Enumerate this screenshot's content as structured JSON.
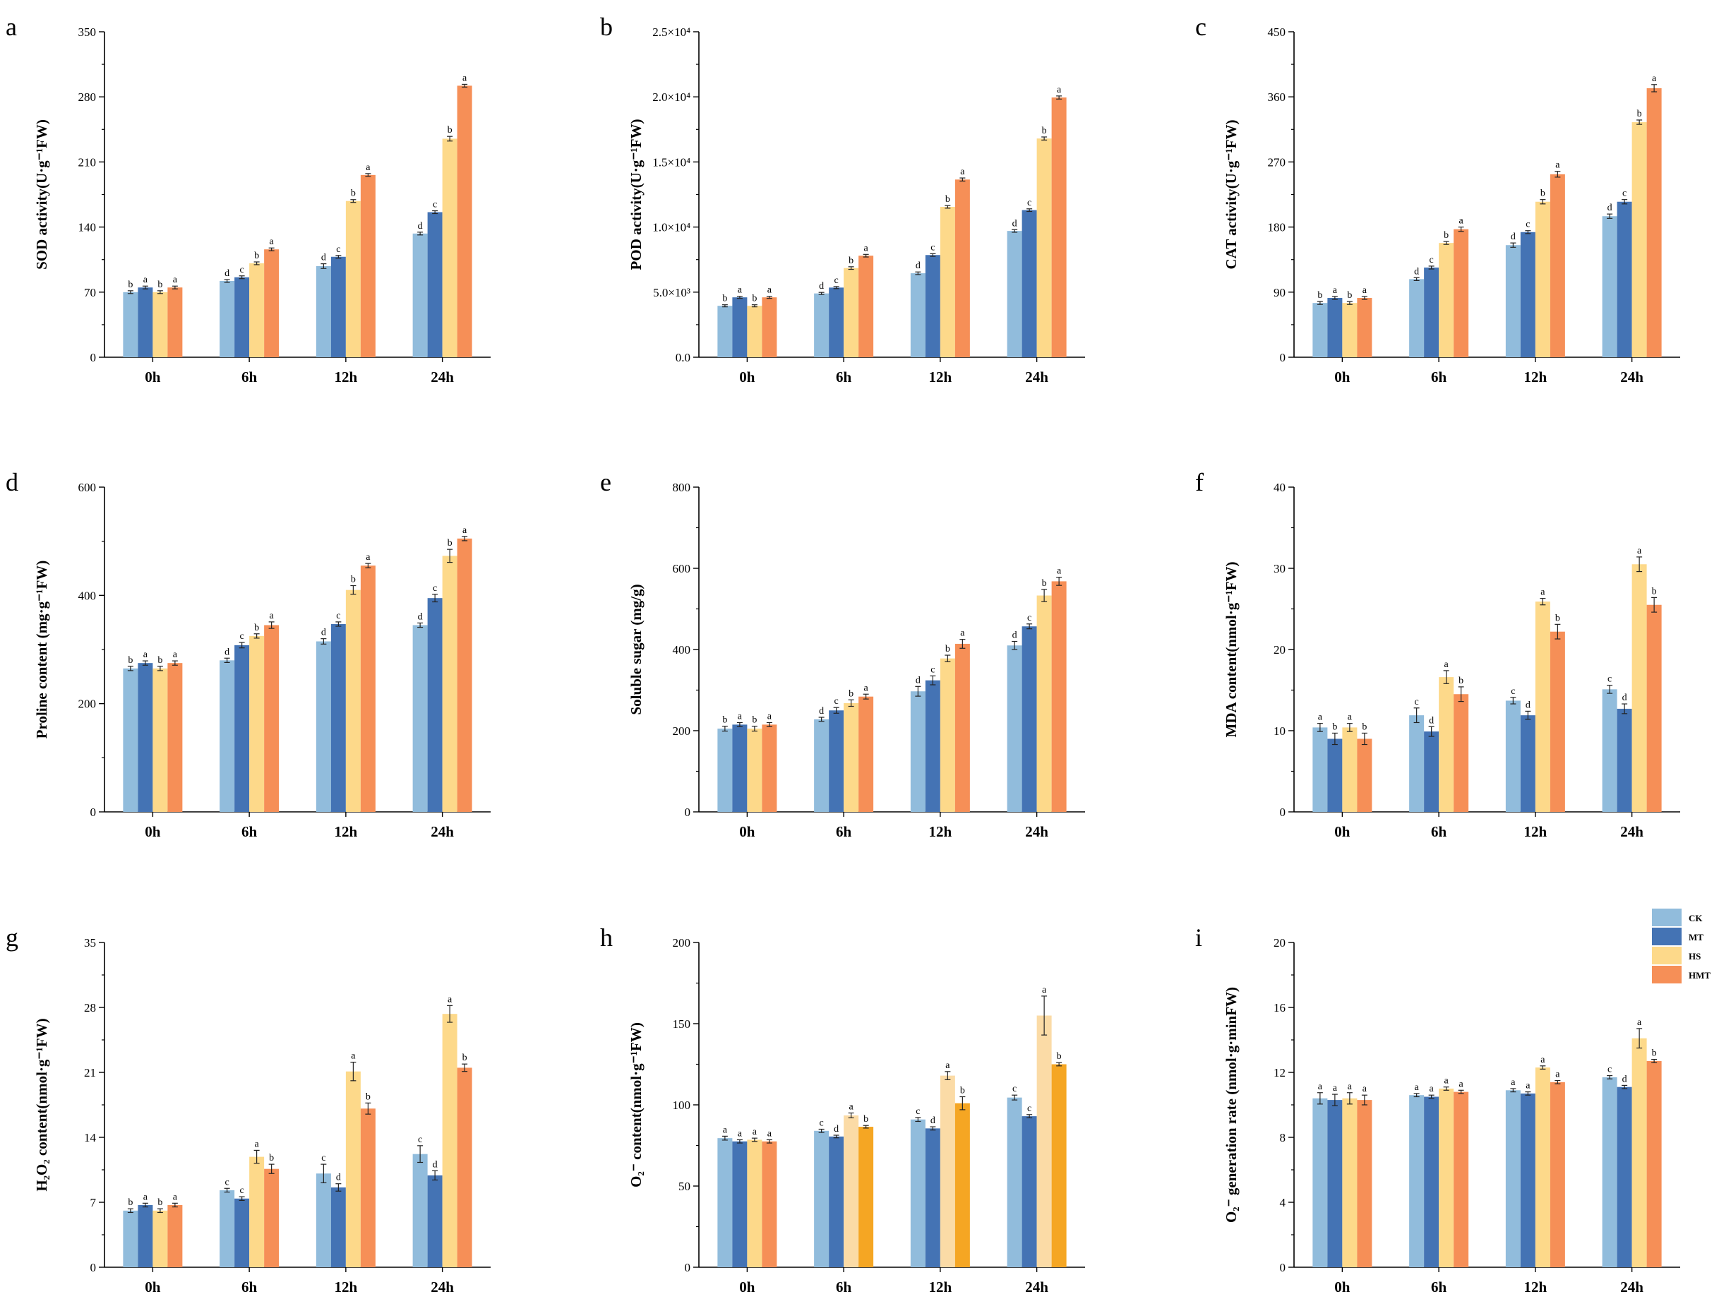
{
  "colors": {
    "CK": "#91bcdc",
    "MT": "#4473b4",
    "HS": "#fdd98a",
    "HMT": "#f68f57",
    "HS_h": "#fbdba6",
    "HMT_h": "#f5a623"
  },
  "legend": {
    "items": [
      "CK",
      "MT",
      "HS",
      "HMT"
    ]
  },
  "chart_data": [
    {
      "type": "bar",
      "panel": "a",
      "ylabel": "SOD activity(U·g⁻¹FW)",
      "ylim": [
        0,
        350
      ],
      "yticks": [
        "0",
        "70",
        "140",
        "210",
        "280",
        "350"
      ],
      "categories": [
        "0h",
        "6h",
        "12h",
        "24h"
      ],
      "series": [
        {
          "name": "CK",
          "values": [
            70,
            82,
            98,
            133
          ],
          "errors": [
            1.5,
            1.5,
            2.5,
            1.5
          ],
          "letters": [
            "b",
            "d",
            "d",
            "d"
          ]
        },
        {
          "name": "MT",
          "values": [
            75,
            86,
            108,
            156
          ],
          "errors": [
            1.5,
            1.5,
            1.5,
            1.5
          ],
          "letters": [
            "a",
            "c",
            "c",
            "c"
          ]
        },
        {
          "name": "HS",
          "values": [
            70,
            101,
            168,
            235
          ],
          "errors": [
            1.5,
            1.5,
            1.5,
            2.5
          ],
          "letters": [
            "b",
            "b",
            "b",
            "b"
          ]
        },
        {
          "name": "HMT",
          "values": [
            75,
            116,
            196,
            292
          ],
          "errors": [
            1.5,
            1.5,
            1.5,
            1.5
          ],
          "letters": [
            "a",
            "a",
            "a",
            "a"
          ]
        }
      ]
    },
    {
      "type": "bar",
      "panel": "b",
      "ylabel": "POD activity(U·g⁻¹FW)",
      "ylim": [
        0,
        25000
      ],
      "yticks": [
        "0.0",
        "5.0×10³",
        "1.0×10⁴",
        "1.5×10⁴",
        "2.0×10⁴",
        "2.5×10⁴"
      ],
      "categories": [
        "0h",
        "6h",
        "12h",
        "24h"
      ],
      "series": [
        {
          "name": "CK",
          "values": [
            3950,
            4900,
            6450,
            9700
          ],
          "errors": [
            80,
            80,
            100,
            100
          ],
          "letters": [
            "b",
            "d",
            "d",
            "d"
          ]
        },
        {
          "name": "MT",
          "values": [
            4600,
            5350,
            7850,
            11300
          ],
          "errors": [
            80,
            80,
            100,
            100
          ],
          "letters": [
            "a",
            "c",
            "c",
            "c"
          ]
        },
        {
          "name": "HS",
          "values": [
            3950,
            6850,
            11550,
            16800
          ],
          "errors": [
            80,
            100,
            100,
            120
          ],
          "letters": [
            "b",
            "b",
            "b",
            "b"
          ]
        },
        {
          "name": "HMT",
          "values": [
            4600,
            7800,
            13650,
            19950
          ],
          "errors": [
            80,
            100,
            120,
            120
          ],
          "letters": [
            "a",
            "a",
            "a",
            "a"
          ]
        }
      ]
    },
    {
      "type": "bar",
      "panel": "c",
      "ylabel": "CAT activity(U·g⁻¹FW)",
      "ylim": [
        0,
        450
      ],
      "yticks": [
        "0",
        "90",
        "180",
        "270",
        "360",
        "450"
      ],
      "categories": [
        "0h",
        "6h",
        "12h",
        "24h"
      ],
      "series": [
        {
          "name": "CK",
          "values": [
            75,
            108,
            155,
            195
          ],
          "errors": [
            2,
            2,
            3,
            3
          ],
          "letters": [
            "b",
            "d",
            "d",
            "d"
          ]
        },
        {
          "name": "MT",
          "values": [
            82,
            124,
            173,
            215
          ],
          "errors": [
            2,
            2,
            2,
            3
          ],
          "letters": [
            "a",
            "c",
            "c",
            "c"
          ]
        },
        {
          "name": "HS",
          "values": [
            75,
            158,
            215,
            325
          ],
          "errors": [
            2,
            2,
            3,
            3
          ],
          "letters": [
            "b",
            "b",
            "b",
            "b"
          ]
        },
        {
          "name": "HMT",
          "values": [
            82,
            177,
            253,
            372
          ],
          "errors": [
            2,
            3,
            4,
            5
          ],
          "letters": [
            "a",
            "a",
            "a",
            "a"
          ]
        }
      ]
    },
    {
      "type": "bar",
      "panel": "d",
      "ylabel": "Proline content (mg·g⁻¹FW)",
      "ylim": [
        0,
        600
      ],
      "yticks": [
        "0",
        "200",
        "400",
        "600"
      ],
      "categories": [
        "0h",
        "6h",
        "12h",
        "24h"
      ],
      "series": [
        {
          "name": "CK",
          "values": [
            265,
            280,
            315,
            345
          ],
          "errors": [
            4,
            4,
            5,
            4
          ],
          "letters": [
            "b",
            "d",
            "d",
            "d"
          ]
        },
        {
          "name": "MT",
          "values": [
            275,
            308,
            347,
            395
          ],
          "errors": [
            4,
            5,
            4,
            7
          ],
          "letters": [
            "a",
            "c",
            "c",
            "c"
          ]
        },
        {
          "name": "HS",
          "values": [
            265,
            325,
            410,
            473
          ],
          "errors": [
            4,
            4,
            8,
            12
          ],
          "letters": [
            "b",
            "b",
            "b",
            "b"
          ]
        },
        {
          "name": "HMT",
          "values": [
            275,
            345,
            455,
            505
          ],
          "errors": [
            4,
            6,
            4,
            4
          ],
          "letters": [
            "a",
            "a",
            "a",
            "a"
          ]
        }
      ]
    },
    {
      "type": "bar",
      "panel": "e",
      "ylabel": "Soluble sugar (mg/g)",
      "ylim": [
        0,
        800
      ],
      "yticks": [
        "0",
        "200",
        "400",
        "600",
        "800"
      ],
      "categories": [
        "0h",
        "6h",
        "12h",
        "24h"
      ],
      "series": [
        {
          "name": "CK",
          "values": [
            205,
            228,
            297,
            410
          ],
          "errors": [
            6,
            5,
            12,
            10
          ],
          "letters": [
            "b",
            "d",
            "d",
            "d"
          ]
        },
        {
          "name": "MT",
          "values": [
            215,
            250,
            324,
            457
          ],
          "errors": [
            5,
            7,
            11,
            6
          ],
          "letters": [
            "a",
            "c",
            "c",
            "c"
          ]
        },
        {
          "name": "HS",
          "values": [
            205,
            268,
            378,
            533
          ],
          "errors": [
            6,
            8,
            8,
            15
          ],
          "letters": [
            "b",
            "b",
            "b",
            "b"
          ]
        },
        {
          "name": "HMT",
          "values": [
            215,
            284,
            414,
            568
          ],
          "errors": [
            5,
            6,
            11,
            10
          ],
          "letters": [
            "a",
            "a",
            "a",
            "a"
          ]
        }
      ]
    },
    {
      "type": "bar",
      "panel": "f",
      "ylabel": "MDA content(nmol·g⁻¹FW)",
      "ylim": [
        0,
        40
      ],
      "yticks": [
        "0",
        "10",
        "20",
        "30",
        "40"
      ],
      "categories": [
        "0h",
        "6h",
        "12h",
        "24h"
      ],
      "series": [
        {
          "name": "CK",
          "values": [
            10.4,
            11.9,
            13.7,
            15.1
          ],
          "errors": [
            0.5,
            0.9,
            0.4,
            0.5
          ],
          "letters": [
            "a",
            "c",
            "c",
            "c"
          ]
        },
        {
          "name": "MT",
          "values": [
            9.0,
            9.9,
            11.9,
            12.7
          ],
          "errors": [
            0.7,
            0.6,
            0.5,
            0.6
          ],
          "letters": [
            "b",
            "d",
            "d",
            "d"
          ]
        },
        {
          "name": "HS",
          "values": [
            10.4,
            16.6,
            25.9,
            30.5
          ],
          "errors": [
            0.5,
            0.8,
            0.4,
            0.9
          ],
          "letters": [
            "a",
            "a",
            "a",
            "a"
          ]
        },
        {
          "name": "HMT",
          "values": [
            9.0,
            14.5,
            22.2,
            25.5
          ],
          "errors": [
            0.7,
            0.9,
            0.9,
            0.9
          ],
          "letters": [
            "b",
            "b",
            "b",
            "b"
          ]
        }
      ]
    },
    {
      "type": "bar",
      "panel": "g",
      "ylabel": "H₂O₂ content(nmol·g⁻¹FW)",
      "ylim": [
        0,
        35
      ],
      "yticks": [
        "0",
        "7",
        "14",
        "21",
        "28",
        "35"
      ],
      "categories": [
        "0h",
        "6h",
        "12h",
        "24h"
      ],
      "series": [
        {
          "name": "CK",
          "values": [
            6.1,
            8.3,
            10.1,
            12.2
          ],
          "errors": [
            0.2,
            0.2,
            1.0,
            0.9
          ],
          "letters": [
            "b",
            "c",
            "c",
            "c"
          ]
        },
        {
          "name": "MT",
          "values": [
            6.7,
            7.4,
            8.6,
            9.9
          ],
          "errors": [
            0.2,
            0.2,
            0.4,
            0.5
          ],
          "letters": [
            "a",
            "c",
            "d",
            "d"
          ]
        },
        {
          "name": "HS",
          "values": [
            6.1,
            11.9,
            21.1,
            27.3
          ],
          "errors": [
            0.2,
            0.7,
            1.0,
            0.9
          ],
          "letters": [
            "b",
            "a",
            "a",
            "a"
          ]
        },
        {
          "name": "HMT",
          "values": [
            6.7,
            10.6,
            17.1,
            21.5
          ],
          "errors": [
            0.2,
            0.5,
            0.6,
            0.4
          ],
          "letters": [
            "a",
            "b",
            "b",
            "b"
          ]
        }
      ]
    },
    {
      "type": "bar",
      "panel": "h",
      "ylabel": "O₂⁻ content(nmol·g⁻¹FW)",
      "ylim": [
        0,
        200
      ],
      "yticks": [
        "0",
        "50",
        "100",
        "150",
        "200"
      ],
      "categories": [
        "0h",
        "6h",
        "12h",
        "24h"
      ],
      "series": [
        {
          "name": "CK",
          "values": [
            79.5,
            84,
            91,
            104.5
          ],
          "errors": [
            1.2,
            1.0,
            1.2,
            1.5
          ],
          "letters": [
            "a",
            "c",
            "c",
            "c"
          ]
        },
        {
          "name": "MT",
          "values": [
            77.5,
            80.5,
            85.5,
            93
          ],
          "errors": [
            1.0,
            0.8,
            1.0,
            1.0
          ],
          "letters": [
            "a",
            "d",
            "d",
            "c"
          ]
        },
        {
          "name": "HS",
          "values": [
            78.5,
            93.5,
            118,
            155
          ],
          "errors": [
            1.0,
            1.5,
            2.5,
            12
          ],
          "letters": [
            "a",
            "a",
            "a",
            "a"
          ]
        },
        {
          "name": "HMT",
          "values": [
            77.5,
            86.5,
            101,
            125
          ],
          "errors": [
            1.0,
            0.8,
            4,
            1.0
          ],
          "letters": [
            "a",
            "b",
            "b",
            "b"
          ]
        }
      ]
    },
    {
      "type": "bar",
      "panel": "i",
      "ylabel": "O₂⁻ generation rate (nmol·g·minFW)",
      "ylim": [
        0,
        20
      ],
      "yticks": [
        "0",
        "4",
        "8",
        "12",
        "16",
        "20"
      ],
      "categories": [
        "0h",
        "6h",
        "12h",
        "24h"
      ],
      "series": [
        {
          "name": "CK",
          "values": [
            10.4,
            10.6,
            10.9,
            11.7
          ],
          "errors": [
            0.35,
            0.1,
            0.1,
            0.1
          ],
          "letters": [
            "a",
            "a",
            "a",
            "c"
          ]
        },
        {
          "name": "MT",
          "values": [
            10.3,
            10.5,
            10.7,
            11.1
          ],
          "errors": [
            0.35,
            0.1,
            0.1,
            0.1
          ],
          "letters": [
            "a",
            "a",
            "a",
            "d"
          ]
        },
        {
          "name": "HS",
          "values": [
            10.4,
            11.0,
            12.3,
            14.1
          ],
          "errors": [
            0.35,
            0.1,
            0.1,
            0.6
          ],
          "letters": [
            "a",
            "a",
            "a",
            "a"
          ]
        },
        {
          "name": "HMT",
          "values": [
            10.3,
            10.8,
            11.4,
            12.7
          ],
          "errors": [
            0.3,
            0.1,
            0.1,
            0.1
          ],
          "letters": [
            "a",
            "a",
            "a",
            "b"
          ]
        }
      ]
    }
  ]
}
